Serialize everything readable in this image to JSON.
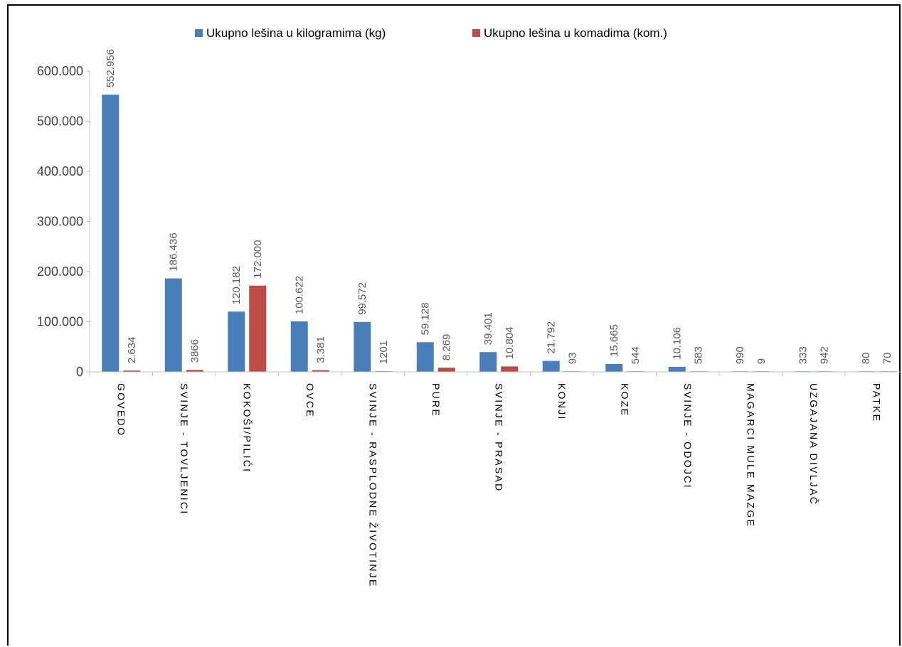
{
  "chart_data": {
    "type": "bar",
    "categories": [
      "GOVEDO",
      "SVINJE - TOVLJENICI",
      "KOKOŠI/PILIĆI",
      "OVCE",
      "SVINJE - RASPLODNE ŽIVOTINJE",
      "PURE",
      "SVINJE - PRASAD",
      "KONJI",
      "KOZE",
      "SVINJE - ODOJCI",
      "MAGARCI MULE MAZGE",
      "UZGAJANA DIVLJAČ",
      "PATKE"
    ],
    "series": [
      {
        "name": "Ukupno lešina u kilogramima (kg)",
        "color": "#4a7ebb",
        "values": [
          552956,
          186436,
          120182,
          100622,
          99572,
          59128,
          39401,
          21792,
          15665,
          10106,
          990,
          333,
          80
        ],
        "labels": [
          "552.956",
          "186.436",
          "120.182",
          "100.622",
          "99.572",
          "59.128",
          "39.401",
          "21.792",
          "15.665",
          "10.106",
          "990",
          "333",
          "80"
        ]
      },
      {
        "name": "Ukupno lešina u komadima (kom.)",
        "color": "#be4b48",
        "values": [
          2634,
          3866,
          172000,
          3381,
          1201,
          8269,
          10804,
          93,
          544,
          583,
          9,
          942,
          70
        ],
        "labels": [
          "2.634",
          "3866",
          "172.000",
          "3.381",
          "1201",
          "8.269",
          "10.804",
          "93",
          "544",
          "583",
          "9",
          "942",
          "70"
        ]
      }
    ],
    "ylim": [
      0,
      600000
    ],
    "yticks": [
      0,
      100000,
      200000,
      300000,
      400000,
      500000,
      600000
    ],
    "ytick_labels": [
      "0",
      "100.000",
      "200.000",
      "300.000",
      "400.000",
      "500.000",
      "600.000"
    ],
    "grid": false,
    "legend_position": "top-center"
  }
}
